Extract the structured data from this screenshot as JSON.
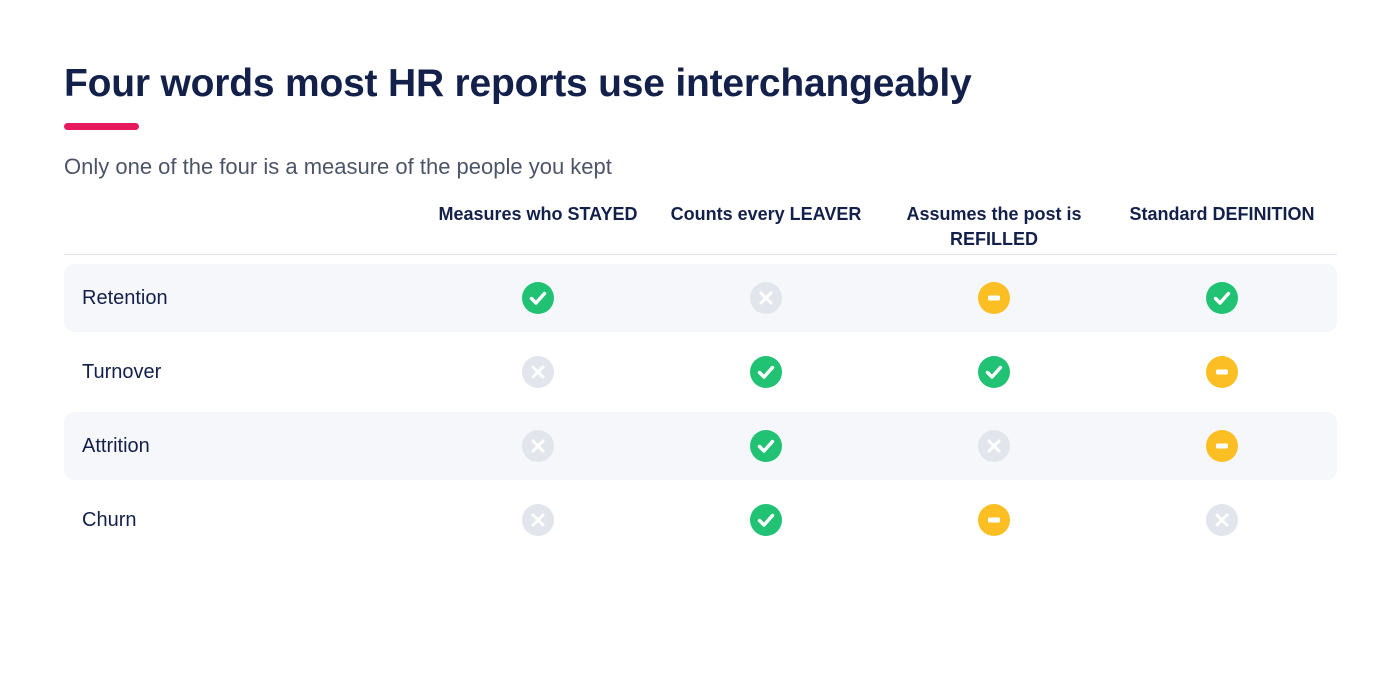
{
  "title": "Four words most HR reports use interchangeably",
  "subtitle": "Only one of the four is a measure of the people you kept",
  "colors": {
    "accent": "#e8185e",
    "yes": "#22c275",
    "no": "#e3e5ec",
    "partial": "#fbbf24"
  },
  "columns": [
    {
      "label": "Measures who STAYED"
    },
    {
      "label": "Counts every LEAVER"
    },
    {
      "label": "Assumes the post is REFILLED"
    },
    {
      "label": "Standard DEFINITION"
    }
  ],
  "rows": [
    {
      "label": "Retention",
      "values": [
        "check-icon",
        "cross-icon",
        "minus-icon",
        "check-icon"
      ]
    },
    {
      "label": "Turnover",
      "values": [
        "cross-icon",
        "check-icon",
        "check-icon",
        "minus-icon"
      ]
    },
    {
      "label": "Attrition",
      "values": [
        "cross-icon",
        "check-icon",
        "cross-icon",
        "minus-icon"
      ]
    },
    {
      "label": "Churn",
      "values": [
        "cross-icon",
        "check-icon",
        "minus-icon",
        "cross-icon"
      ]
    }
  ]
}
